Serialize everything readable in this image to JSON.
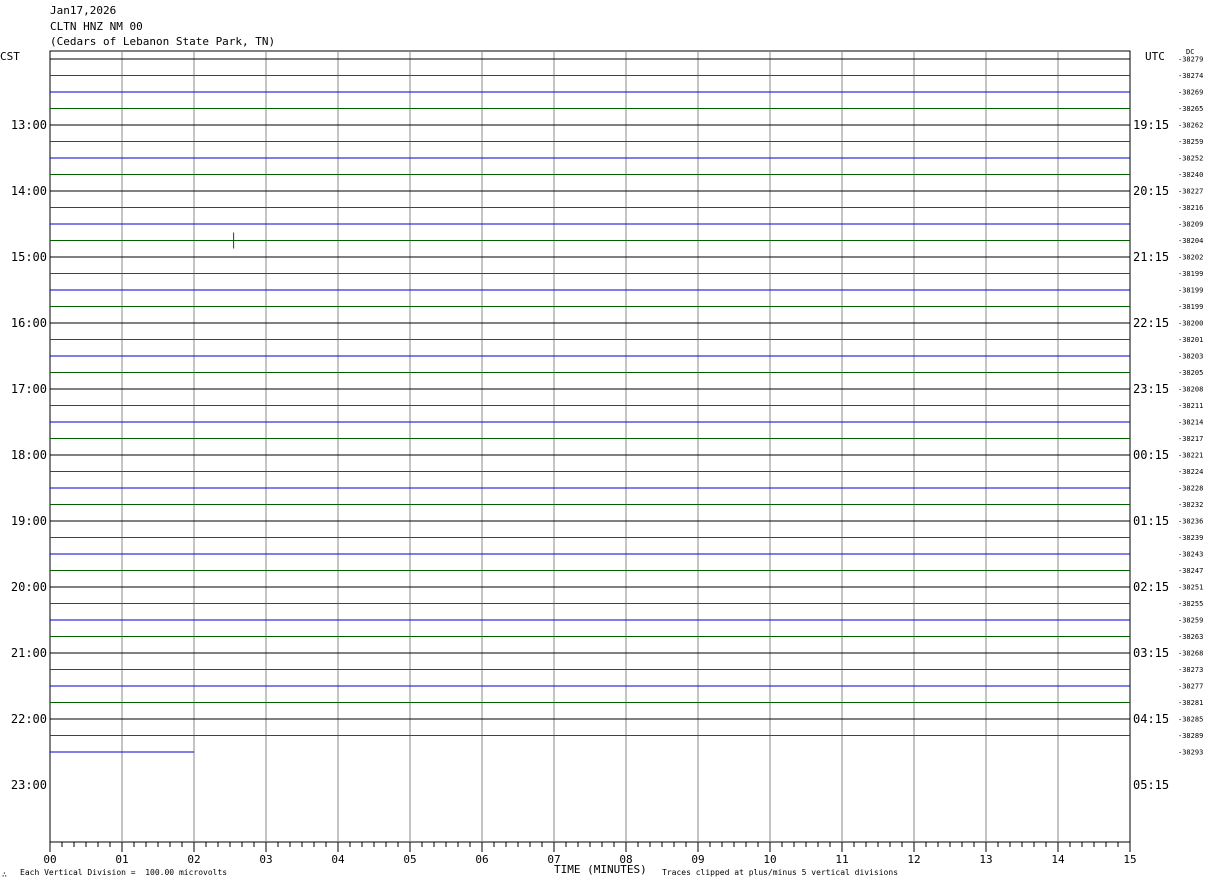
{
  "header": {
    "date": "Jan17,2026",
    "station": "CLTN HNZ NM 00",
    "location": "(Cedars of Lebanon State Park, TN)"
  },
  "left_timezone": "CST",
  "right_timezone": "UTC",
  "dc_label": "DC",
  "footer": {
    "scale_note": "Each Vertical Division =  100.00 microvolts",
    "clip_note": "Traces clipped at plus/minus 5 vertical divisions",
    "corner_mark": "∴"
  },
  "chart_data": {
    "type": "helicorder",
    "title": "",
    "xlabel": "TIME (MINUTES)",
    "x_ticks": [
      "00",
      "01",
      "02",
      "03",
      "04",
      "05",
      "06",
      "07",
      "08",
      "09",
      "10",
      "11",
      "12",
      "13",
      "14",
      "15"
    ],
    "xlim": [
      0,
      15
    ],
    "minutes_per_line": 15,
    "trace_colors": [
      "#000000",
      "#e00000",
      "#0000d0",
      "#006000"
    ],
    "left_hour_labels": [
      "13:00",
      "14:00",
      "15:00",
      "16:00",
      "17:00",
      "18:00",
      "19:00",
      "20:00",
      "21:00",
      "22:00",
      "23:00"
    ],
    "right_hour_labels": [
      "19:15",
      "20:15",
      "21:15",
      "22:15",
      "23:15",
      "00:15",
      "01:15",
      "02:15",
      "03:15",
      "04:15",
      "05:15"
    ],
    "dc_offsets": [
      "-38279",
      "-38274",
      "-38269",
      "-38265",
      "-38262",
      "-38259",
      "-38252",
      "-38240",
      "-38227",
      "-38216",
      "-38209",
      "-38204",
      "-38202",
      "-38199",
      "-38199",
      "-38199",
      "-38200",
      "-38201",
      "-38203",
      "-38205",
      "-38208",
      "-38211",
      "-38214",
      "-38217",
      "-38221",
      "-38224",
      "-38228",
      "-38232",
      "-38236",
      "-38239",
      "-38243",
      "-38247",
      "-38251",
      "-38255",
      "-38259",
      "-38263",
      "-38268",
      "-38273",
      "-38277",
      "-38281",
      "-38285",
      "-38289",
      "-38293"
    ],
    "last_trace_end_minute": 2.0,
    "events": [
      {
        "trace_index": 11,
        "minute": 2.55,
        "amplitude_divisions": 1.0
      }
    ]
  }
}
